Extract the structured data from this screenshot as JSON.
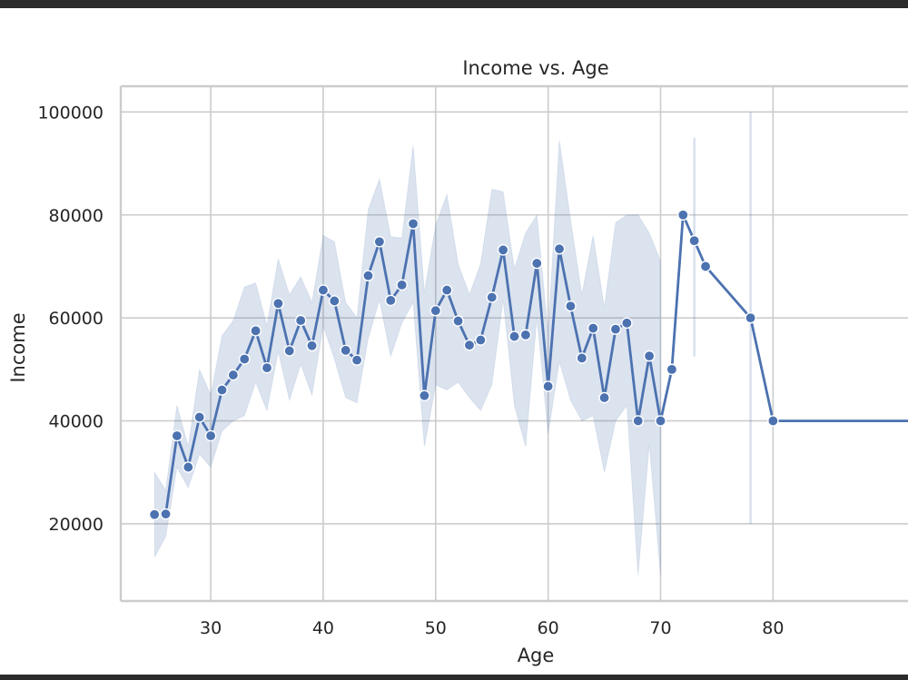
{
  "chart_data": {
    "type": "line",
    "title": "Income vs. Age",
    "xlabel": "Age",
    "ylabel": "Income",
    "xlim": [
      22,
      92
    ],
    "ylim": [
      5000,
      105000
    ],
    "xticks": [
      30,
      40,
      50,
      60,
      70,
      80
    ],
    "yticks": [
      20000,
      40000,
      60000,
      80000,
      100000
    ],
    "grid": true,
    "colors": {
      "line": "#4c72b0",
      "band": "#4c72b0",
      "grid": "#cccccc",
      "frame": "#cccccc"
    },
    "series": [
      {
        "x": [
          25,
          26,
          27,
          28,
          29,
          30,
          31,
          32,
          33,
          34,
          35,
          36,
          37,
          38,
          39,
          40,
          41,
          42,
          43,
          44,
          45,
          46,
          47,
          48,
          49,
          50,
          51,
          52,
          53,
          54,
          55,
          56,
          57,
          58,
          59,
          60,
          61,
          62,
          63,
          64,
          65,
          66,
          67,
          68,
          69,
          70,
          71,
          72,
          73,
          74,
          78,
          80,
          92
        ],
        "y": [
          21800,
          21900,
          37100,
          31000,
          40700,
          37100,
          46000,
          48900,
          52000,
          57500,
          50300,
          62800,
          53600,
          59500,
          54600,
          65400,
          63300,
          53700,
          51800,
          68200,
          74800,
          63400,
          66400,
          78300,
          44900,
          61400,
          65400,
          59400,
          54700,
          55700,
          64000,
          73200,
          56400,
          56700,
          70600,
          46700,
          73400,
          62300,
          52200,
          58000,
          44500,
          57800,
          59000,
          40000,
          52600,
          40000,
          50000,
          80000,
          75000,
          70000,
          60000,
          40000,
          40000
        ]
      }
    ],
    "confidence_band": {
      "x": [
        25,
        26,
        27,
        28,
        29,
        30,
        31,
        32,
        33,
        34,
        35,
        36,
        37,
        38,
        39,
        40,
        41,
        42,
        43,
        44,
        45,
        46,
        47,
        48,
        49,
        50,
        51,
        52,
        53,
        54,
        55,
        56,
        57,
        58,
        59,
        60,
        61,
        62,
        63,
        64,
        65,
        66,
        67,
        68,
        69,
        70
      ],
      "lower": [
        13500,
        17500,
        31000,
        27000,
        33500,
        31000,
        38000,
        40000,
        41000,
        47500,
        42000,
        53500,
        44000,
        51000,
        45000,
        58500,
        52000,
        44500,
        43500,
        56000,
        63500,
        52500,
        59000,
        63000,
        35000,
        47000,
        46000,
        47500,
        44500,
        42000,
        47000,
        63500,
        43000,
        35000,
        60000,
        37500,
        51500,
        44000,
        40000,
        41000,
        30000,
        40000,
        43000,
        10000,
        35500,
        10000
      ],
      "upper": [
        30000,
        26500,
        43000,
        35000,
        50000,
        45000,
        56500,
        59500,
        66000,
        66800,
        58500,
        71500,
        64500,
        68000,
        63000,
        76000,
        74800,
        63000,
        60000,
        81000,
        87000,
        75800,
        75500,
        93500,
        65000,
        78000,
        84000,
        70500,
        64500,
        70500,
        85000,
        84500,
        69500,
        76500,
        80000,
        57000,
        94500,
        79000,
        64500,
        76000,
        62000,
        78500,
        80000,
        80000,
        76500,
        71000
      ]
    },
    "single_point_cis": [
      {
        "x": 73,
        "lower": 52500,
        "upper": 95000
      },
      {
        "x": 78,
        "lower": 20000,
        "upper": 100000
      }
    ]
  }
}
